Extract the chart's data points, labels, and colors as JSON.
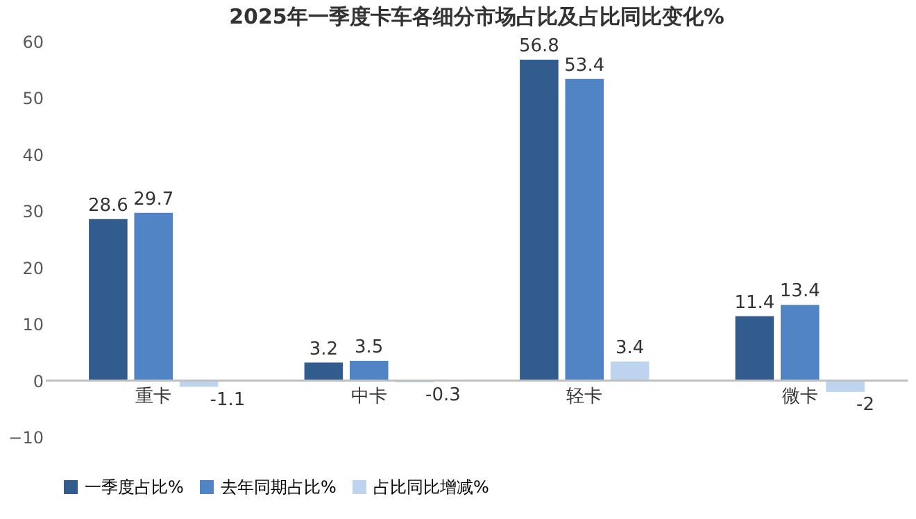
{
  "chart_data": {
    "type": "bar",
    "title": "2025年一季度卡车各细分市场占比及占比同比变化%",
    "categories": [
      "重卡",
      "中卡",
      "轻卡",
      "微卡"
    ],
    "series": [
      {
        "name": "一季度占比%",
        "color": "#335c8e",
        "values": [
          28.6,
          3.2,
          56.8,
          11.4
        ]
      },
      {
        "name": "去年同期占比%",
        "color": "#5084c4",
        "values": [
          29.7,
          3.5,
          53.4,
          13.4
        ]
      },
      {
        "name": "占比同比增减%",
        "color": "#bdd3ee",
        "values": [
          -1.1,
          -0.3,
          3.4,
          -2
        ]
      }
    ],
    "ylim": [
      -10,
      60
    ],
    "yticks": [
      -10,
      0,
      10,
      20,
      30,
      40,
      50,
      60
    ],
    "data_labels": true,
    "legend": "bottom",
    "grid": false
  }
}
